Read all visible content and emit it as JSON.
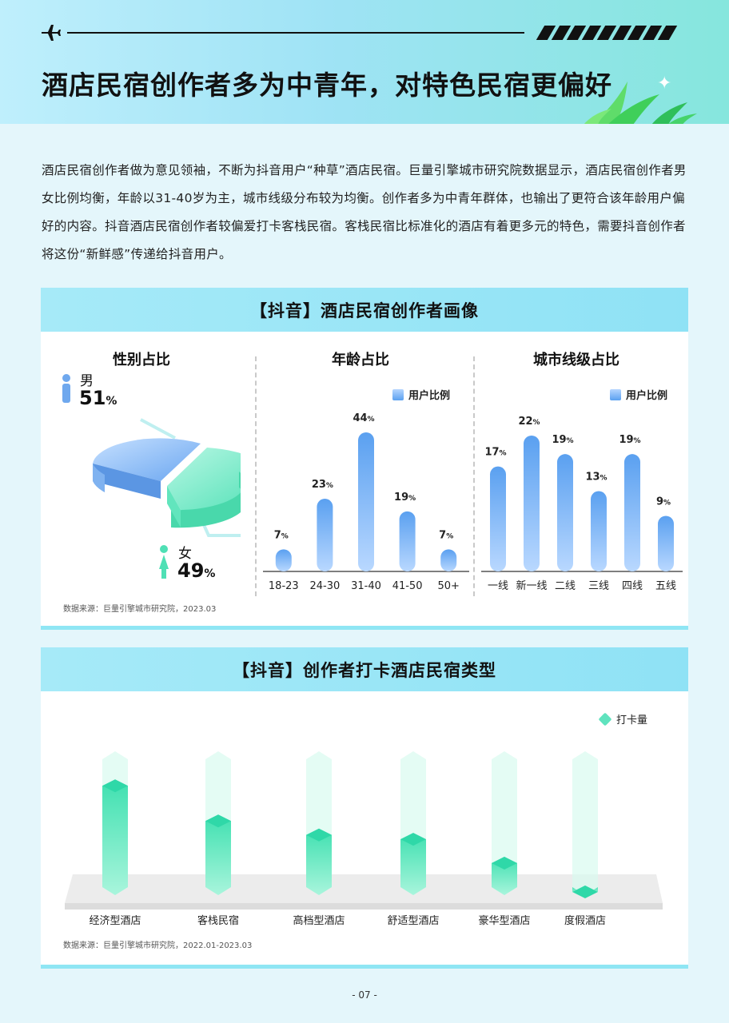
{
  "header": {
    "title": "酒店民宿创作者多为中青年，对特色民宿更偏好"
  },
  "intro": "酒店民宿创作者做为意见领袖，不断为抖音用户“种草”酒店民宿。巨量引擎城市研究院数据显示，酒店民宿创作者男女比例均衡，年龄以31-40岁为主，城市线级分布较为均衡。创作者多为中青年群体，也输出了更符合该年龄用户偏好的内容。抖音酒店民宿创作者较偏爱打卡客栈民宿。客栈民宿比标准化的酒店有着更多元的特色，需要抖音创作者将这份“新鲜感”传递给抖音用户。",
  "panel1": {
    "title": "【抖音】酒店民宿创作者画像",
    "gender_title": "性别占比",
    "age_title": "年龄占比",
    "city_title": "城市线级占比",
    "legend": "用户比例",
    "male_label": "男",
    "male_value": "51",
    "female_label": "女",
    "female_value": "49",
    "percent": "%",
    "source": "数据来源：巨量引擎城市研究院，2023.03"
  },
  "panel2": {
    "title": "【抖音】创作者打卡酒店民宿类型",
    "legend": "打卡量",
    "source": "数据来源：巨量引擎城市研究院，2022.01-2023.03"
  },
  "chart_data": [
    {
      "type": "pie",
      "title": "性别占比",
      "categories": [
        "男",
        "女"
      ],
      "values": [
        51,
        49
      ],
      "colors": [
        "#7fb8f5",
        "#6fe8c4"
      ]
    },
    {
      "type": "bar",
      "title": "年龄占比",
      "categories": [
        "18-23",
        "24-30",
        "31-40",
        "41-50",
        "50+"
      ],
      "series": [
        {
          "name": "用户比例",
          "values": [
            7,
            23,
            44,
            19,
            7
          ]
        }
      ],
      "ylim": [
        0,
        44
      ],
      "grid": false,
      "legend": "top-right"
    },
    {
      "type": "bar",
      "title": "城市线级占比",
      "categories": [
        "一线",
        "新一线",
        "二线",
        "三线",
        "四线",
        "五线"
      ],
      "series": [
        {
          "name": "用户比例",
          "values": [
            17,
            22,
            19,
            13,
            19,
            9
          ]
        }
      ],
      "ylim": [
        0,
        22
      ],
      "grid": false,
      "legend": "top-right"
    },
    {
      "type": "bar",
      "title": "",
      "categories": [
        "经济型酒店",
        "客栈民宿",
        "高档型酒店",
        "舒适型酒店",
        "豪华型酒店",
        "度假酒店"
      ],
      "series": [
        {
          "name": "打卡量",
          "values": [
            0.8,
            0.55,
            0.45,
            0.42,
            0.25,
            0.02
          ]
        }
      ],
      "ylim": [
        0,
        1
      ],
      "legend": "top-right"
    }
  ],
  "footer": {
    "page": "- 07 -"
  },
  "colors": {
    "blue_bar": "#5aa0f0",
    "green_bar": "#4fe0b5",
    "panel_head": "#a6eaf8"
  }
}
